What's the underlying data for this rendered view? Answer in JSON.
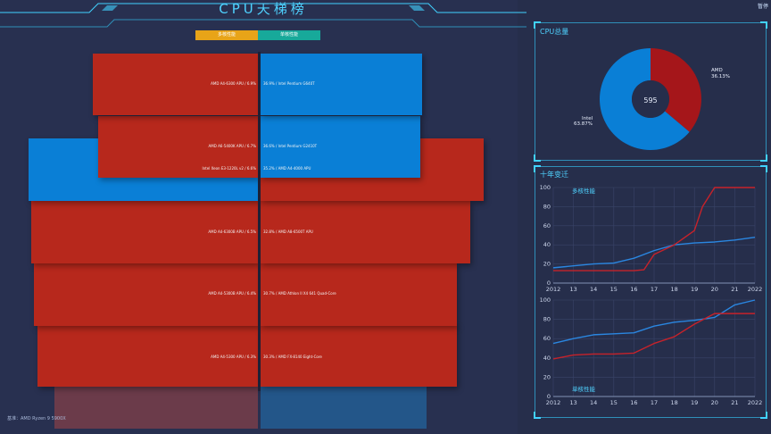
{
  "page": {
    "title": "CPU天梯榜",
    "top_right": "暂停",
    "baseline": "基准：AMD Ryzen 9 5900X"
  },
  "tabs": [
    {
      "label": "多核性能",
      "color": "#e8a418"
    },
    {
      "label": "单核性能",
      "color": "#17a99a"
    }
  ],
  "colors": {
    "amd": "#b7281c",
    "intel": "#0a7fd6",
    "accent": "#41d2ff",
    "multi_line": "#2a86e0",
    "single_line": "#c7222a"
  },
  "ranking": {
    "rows": [
      {
        "left_label": "AMD A4-6300 APU / 6.9%",
        "right_label": "36.9% / Intel Pentium G640T",
        "left_vendor": "amd",
        "right_vendor": "intel"
      },
      {
        "left_label": "AMD A6-5400K APU / 6.7%",
        "right_label": "36.6% / Intel Pentium G2410T",
        "left_vendor": "amd",
        "right_vendor": "intel"
      },
      {
        "left_label": "Intel Xeon E3-1220L v2 / 6.6%",
        "right_label": "35.2% / AMD A4-4000 APU",
        "left_vendor": "intel",
        "right_vendor": "amd"
      },
      {
        "left_label": "AMD A4-6300B APU / 6.5%",
        "right_label": "32.8% / AMD A8-6500T APU",
        "left_vendor": "amd",
        "right_vendor": "amd"
      },
      {
        "left_label": "AMD A4-5300B APU / 6.4%",
        "right_label": "30.7% / AMD Athlon II X4 641 Quad-Core",
        "left_vendor": "amd",
        "right_vendor": "amd"
      },
      {
        "left_label": "AMD A4-5300 APU / 6.3%",
        "right_label": "30.3% / AMD FX-8140 Eight-Core",
        "left_vendor": "amd",
        "right_vendor": "amd"
      }
    ]
  },
  "cpu_total": {
    "title": "CPU总量",
    "total": "595",
    "segments": [
      {
        "name": "AMD",
        "percent_label": "36.13%",
        "value": 36.13,
        "color": "#a5161a"
      },
      {
        "name": "Intel",
        "percent_label": "63.87%",
        "value": 63.87,
        "color": "#0a7fd6"
      }
    ]
  },
  "decade": {
    "title": "十年变迁",
    "x_ticks": [
      "2012",
      "13",
      "14",
      "15",
      "16",
      "17",
      "18",
      "19",
      "20",
      "21",
      "2022"
    ],
    "y_ticks": [
      "0",
      "20",
      "40",
      "60",
      "80",
      "100"
    ],
    "charts": [
      {
        "label": "多核性能",
        "ylim": [
          0,
          100
        ],
        "series": [
          {
            "vendor": "intel",
            "color": "#2a86e0",
            "x": [
              2012,
              2013,
              2014,
              2015,
              2016,
              2017,
              2018,
              2019,
              2020,
              2021,
              2022
            ],
            "y": [
              16,
              18,
              20,
              21,
              26,
              34,
              40,
              42,
              43,
              45,
              48
            ]
          },
          {
            "vendor": "amd",
            "color": "#c7222a",
            "x": [
              2012,
              2013,
              2014,
              2015,
              2016,
              2016.5,
              2017,
              2018,
              2019,
              2019.4,
              2020,
              2021,
              2022
            ],
            "y": [
              13,
              13,
              13,
              13,
              13,
              14,
              30,
              40,
              55,
              80,
              100,
              100,
              100
            ]
          }
        ]
      },
      {
        "label": "单核性能",
        "ylim": [
          0,
          100
        ],
        "series": [
          {
            "vendor": "intel",
            "color": "#2a86e0",
            "x": [
              2012,
              2013,
              2014,
              2015,
              2016,
              2017,
              2018,
              2019,
              2020,
              2021,
              2022
            ],
            "y": [
              55,
              60,
              64,
              65,
              66,
              73,
              77,
              79,
              82,
              95,
              100
            ]
          },
          {
            "vendor": "amd",
            "color": "#c7222a",
            "x": [
              2012,
              2013,
              2014,
              2015,
              2016,
              2017,
              2018,
              2019,
              2020,
              2021,
              2022
            ],
            "y": [
              39,
              43,
              44,
              44,
              45,
              55,
              62,
              75,
              86,
              86,
              86
            ]
          }
        ]
      }
    ]
  }
}
